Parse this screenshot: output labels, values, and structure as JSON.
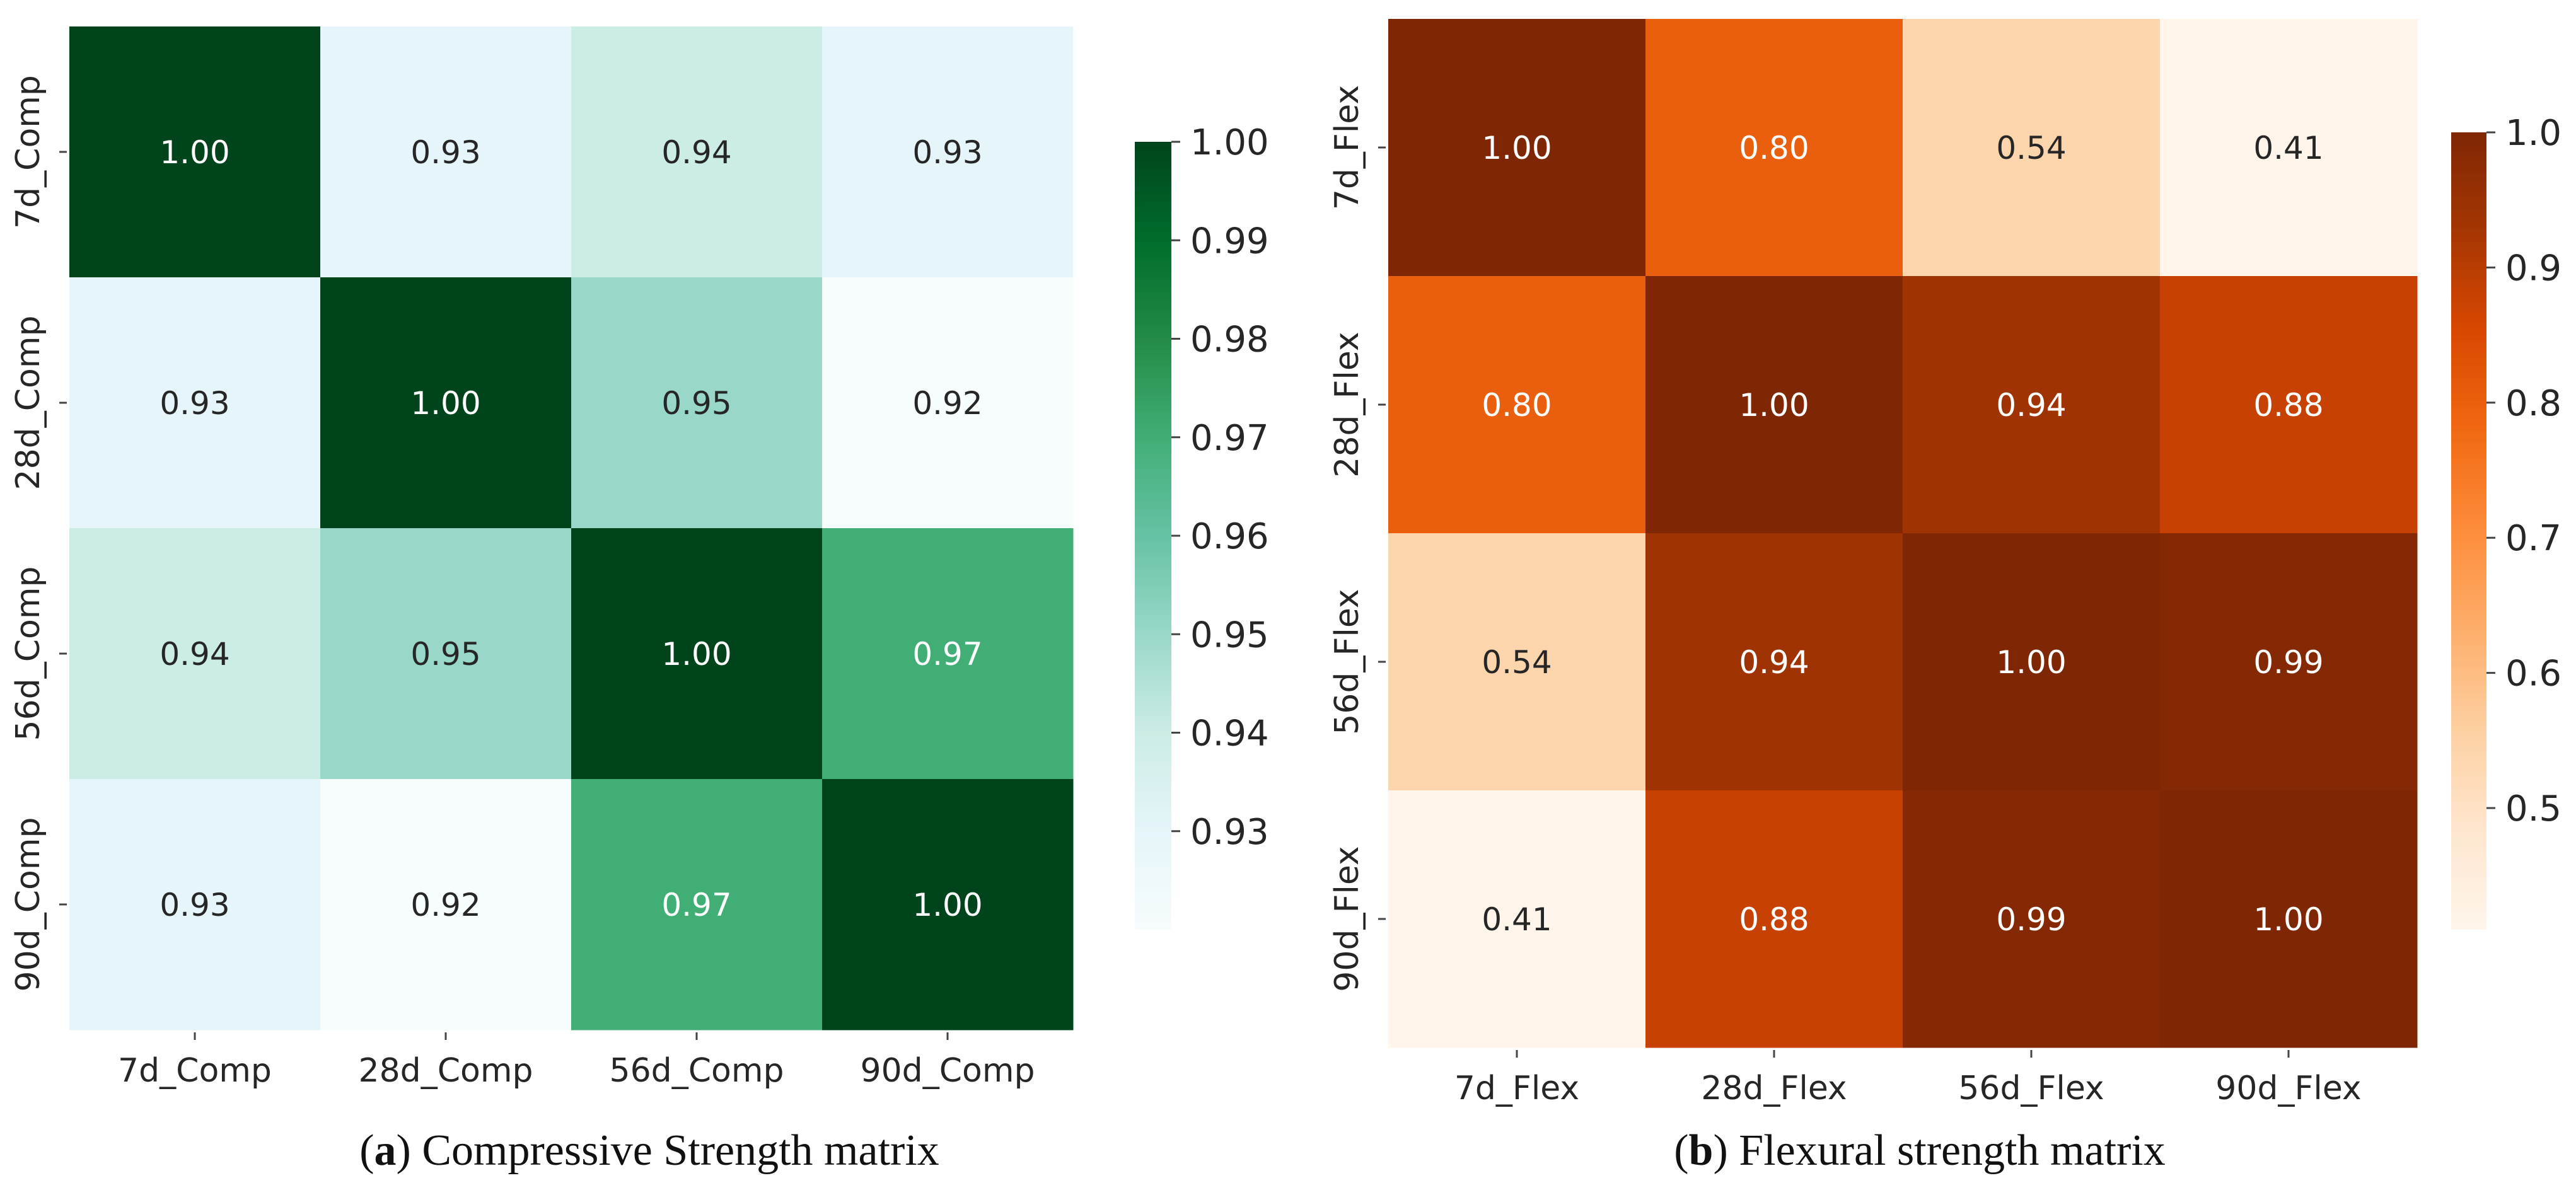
{
  "chart_data": [
    {
      "type": "heatmap",
      "id": "a",
      "caption_letter": "a",
      "caption_text": "Compressive Strength matrix",
      "row_labels": [
        "7d_Comp",
        "28d_Comp",
        "56d_Comp",
        "90d_Comp"
      ],
      "col_labels": [
        "7d_Comp",
        "28d_Comp",
        "56d_Comp",
        "90d_Comp"
      ],
      "values": [
        [
          1.0,
          0.93,
          0.94,
          0.93
        ],
        [
          0.93,
          1.0,
          0.95,
          0.92
        ],
        [
          0.94,
          0.95,
          1.0,
          0.97
        ],
        [
          0.93,
          0.92,
          0.97,
          1.0
        ]
      ],
      "colormap": "BuGn",
      "colorbar": {
        "vmin": 0.92,
        "vmax": 1.0,
        "ticks": [
          0.93,
          0.94,
          0.95,
          0.96,
          0.97,
          0.98,
          0.99,
          1.0
        ],
        "tick_labels": [
          "0.93",
          "0.94",
          "0.95",
          "0.96",
          "0.97",
          "0.98",
          "0.99",
          "1.00"
        ]
      }
    },
    {
      "type": "heatmap",
      "id": "b",
      "caption_letter": "b",
      "caption_text": "Flexural strength matrix",
      "row_labels": [
        "7d_Flex",
        "28d_Flex",
        "56d_Flex",
        "90d_Flex"
      ],
      "col_labels": [
        "7d_Flex",
        "28d_Flex",
        "56d_Flex",
        "90d_Flex"
      ],
      "values": [
        [
          1.0,
          0.8,
          0.54,
          0.41
        ],
        [
          0.8,
          1.0,
          0.94,
          0.88
        ],
        [
          0.54,
          0.94,
          1.0,
          0.99
        ],
        [
          0.41,
          0.88,
          0.99,
          1.0
        ]
      ],
      "colormap": "Oranges",
      "colorbar": {
        "vmin": 0.41,
        "vmax": 1.0,
        "ticks": [
          0.5,
          0.6,
          0.7,
          0.8,
          0.9,
          1.0
        ],
        "tick_labels": [
          "0.5",
          "0.6",
          "0.7",
          "0.8",
          "0.9",
          "1.0"
        ]
      }
    }
  ]
}
